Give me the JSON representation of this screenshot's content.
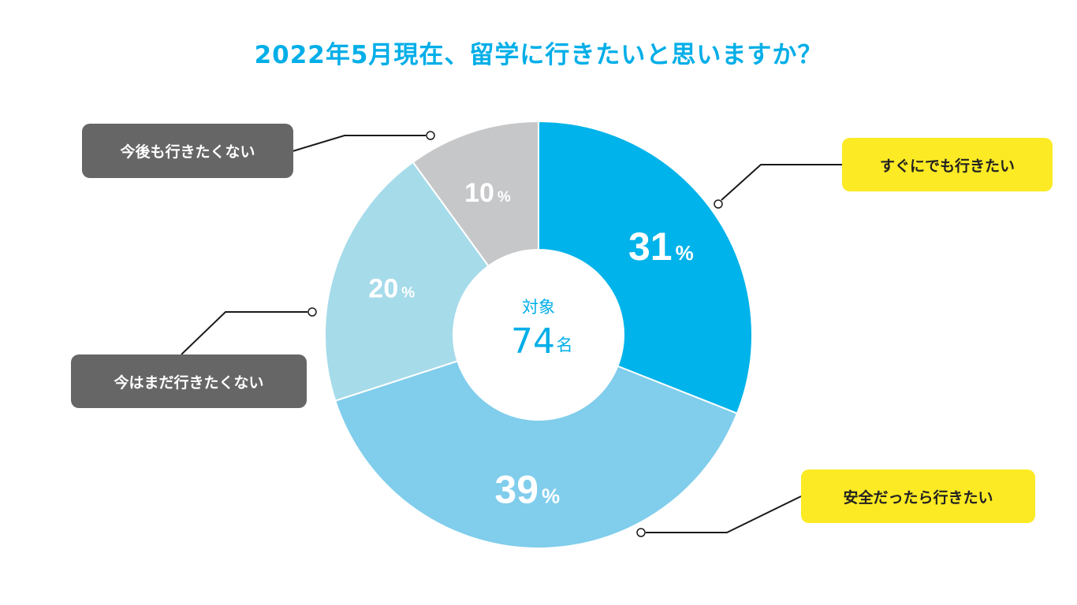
{
  "title": "2022年5月現在、留学に行きたいと思いますか？",
  "center": {
    "label": "対象",
    "count": "74",
    "unit": "名"
  },
  "chart_data": {
    "type": "pie",
    "title": "2022年5月現在、留学に行きたいと思いますか？",
    "unit": "%",
    "slices": [
      {
        "label": "すぐにでも行きたい",
        "value": 31,
        "value_label": "31",
        "color": "#00b3ea"
      },
      {
        "label": "安全だったら行きたい",
        "value": 39,
        "value_label": "39",
        "color": "#80cdec"
      },
      {
        "label": "今はまだ行きたくない",
        "value": 20,
        "value_label": "20",
        "color": "#a6dbea"
      },
      {
        "label": "今後も行きたくない",
        "value": 10,
        "value_label": "10",
        "color": "#c6c7c9"
      }
    ]
  },
  "callouts": {
    "now": "すぐにでも行きたい",
    "safe": "安全だったら行きたい",
    "not_yet": "今はまだ行きたくない",
    "never": "今後も行きたくない"
  }
}
